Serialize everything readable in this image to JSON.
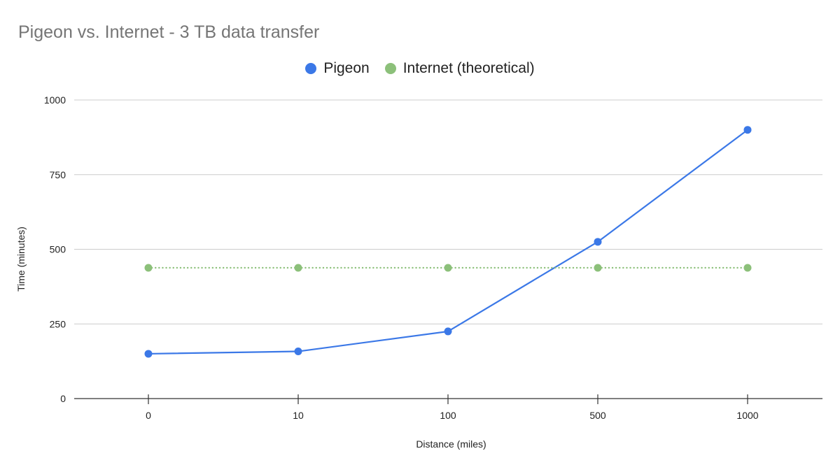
{
  "colors": {
    "pigeon": "#3b78e7",
    "internet": "#8cc07a",
    "grid": "#cccccc",
    "axis": "#333333",
    "title": "#757575"
  },
  "chart_data": {
    "type": "line",
    "title": "Pigeon vs. Internet - 3 TB data transfer",
    "xlabel": "Distance (miles)",
    "ylabel": "Time (minutes)",
    "categories": [
      "0",
      "10",
      "100",
      "500",
      "1000"
    ],
    "yticks": [
      "0",
      "250",
      "500",
      "750",
      "1000"
    ],
    "ylim": [
      0,
      1000
    ],
    "grid": true,
    "legend_position": "top-center",
    "series": [
      {
        "name": "Pigeon",
        "values": [
          150,
          158,
          225,
          525,
          900
        ],
        "style": "solid",
        "color": "#3b78e7"
      },
      {
        "name": "Internet (theoretical)",
        "values": [
          438,
          438,
          438,
          438,
          438
        ],
        "style": "dotted",
        "color": "#8cc07a"
      }
    ]
  }
}
